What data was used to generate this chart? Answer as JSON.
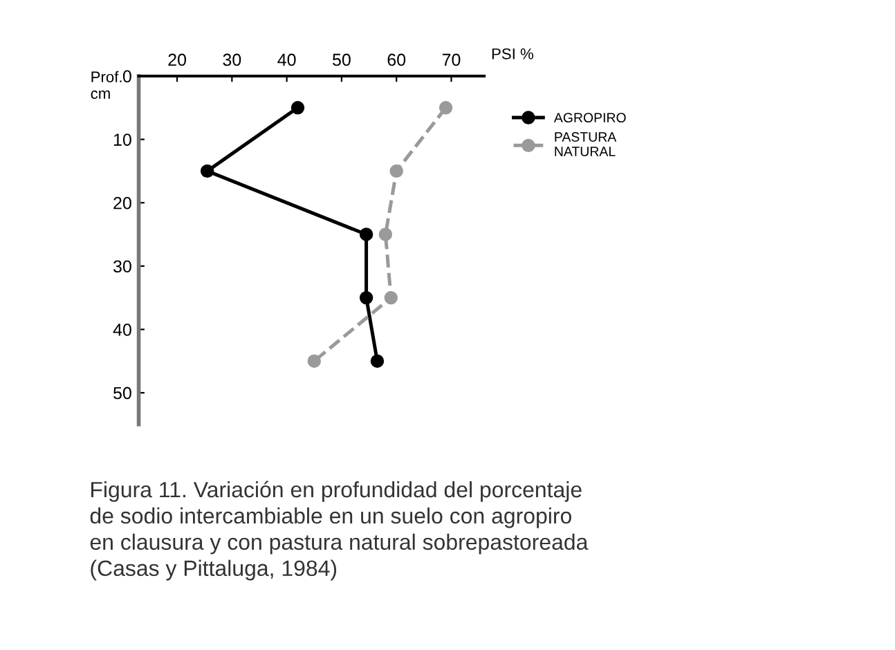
{
  "chart_data": {
    "type": "line",
    "xlabel": "PSI %",
    "ylabel": "Prof.\ncm",
    "xlim": [
      13,
      76
    ],
    "xticks": [
      20,
      30,
      40,
      50,
      60,
      70
    ],
    "ylim": [
      55,
      0
    ],
    "yticks": [
      0,
      10,
      20,
      30,
      40,
      50
    ],
    "series": [
      {
        "name": "AGROPIRO",
        "color": "#000000",
        "line_style": "solid",
        "x": [
          42,
          25.5,
          54.5,
          54.5,
          56.5
        ],
        "values": [
          5,
          15,
          25,
          35,
          45
        ]
      },
      {
        "name": "PASTURA\nNATURAL",
        "color": "#9a9a9a",
        "line_style": "dashed",
        "x": [
          69,
          60,
          58,
          59,
          45
        ],
        "values": [
          5,
          15,
          25,
          35,
          45
        ]
      }
    ],
    "marker": "circle",
    "legend": "right",
    "grid": false,
    "annotations": [
      "Figura 11. Variación en profundidad del porcentaje\nde sodio intercambiable en un suelo con agropiro\nen clausura y con pastura natural sobrepastoreada\n(Casas y Pittaluga, 1984)"
    ]
  }
}
